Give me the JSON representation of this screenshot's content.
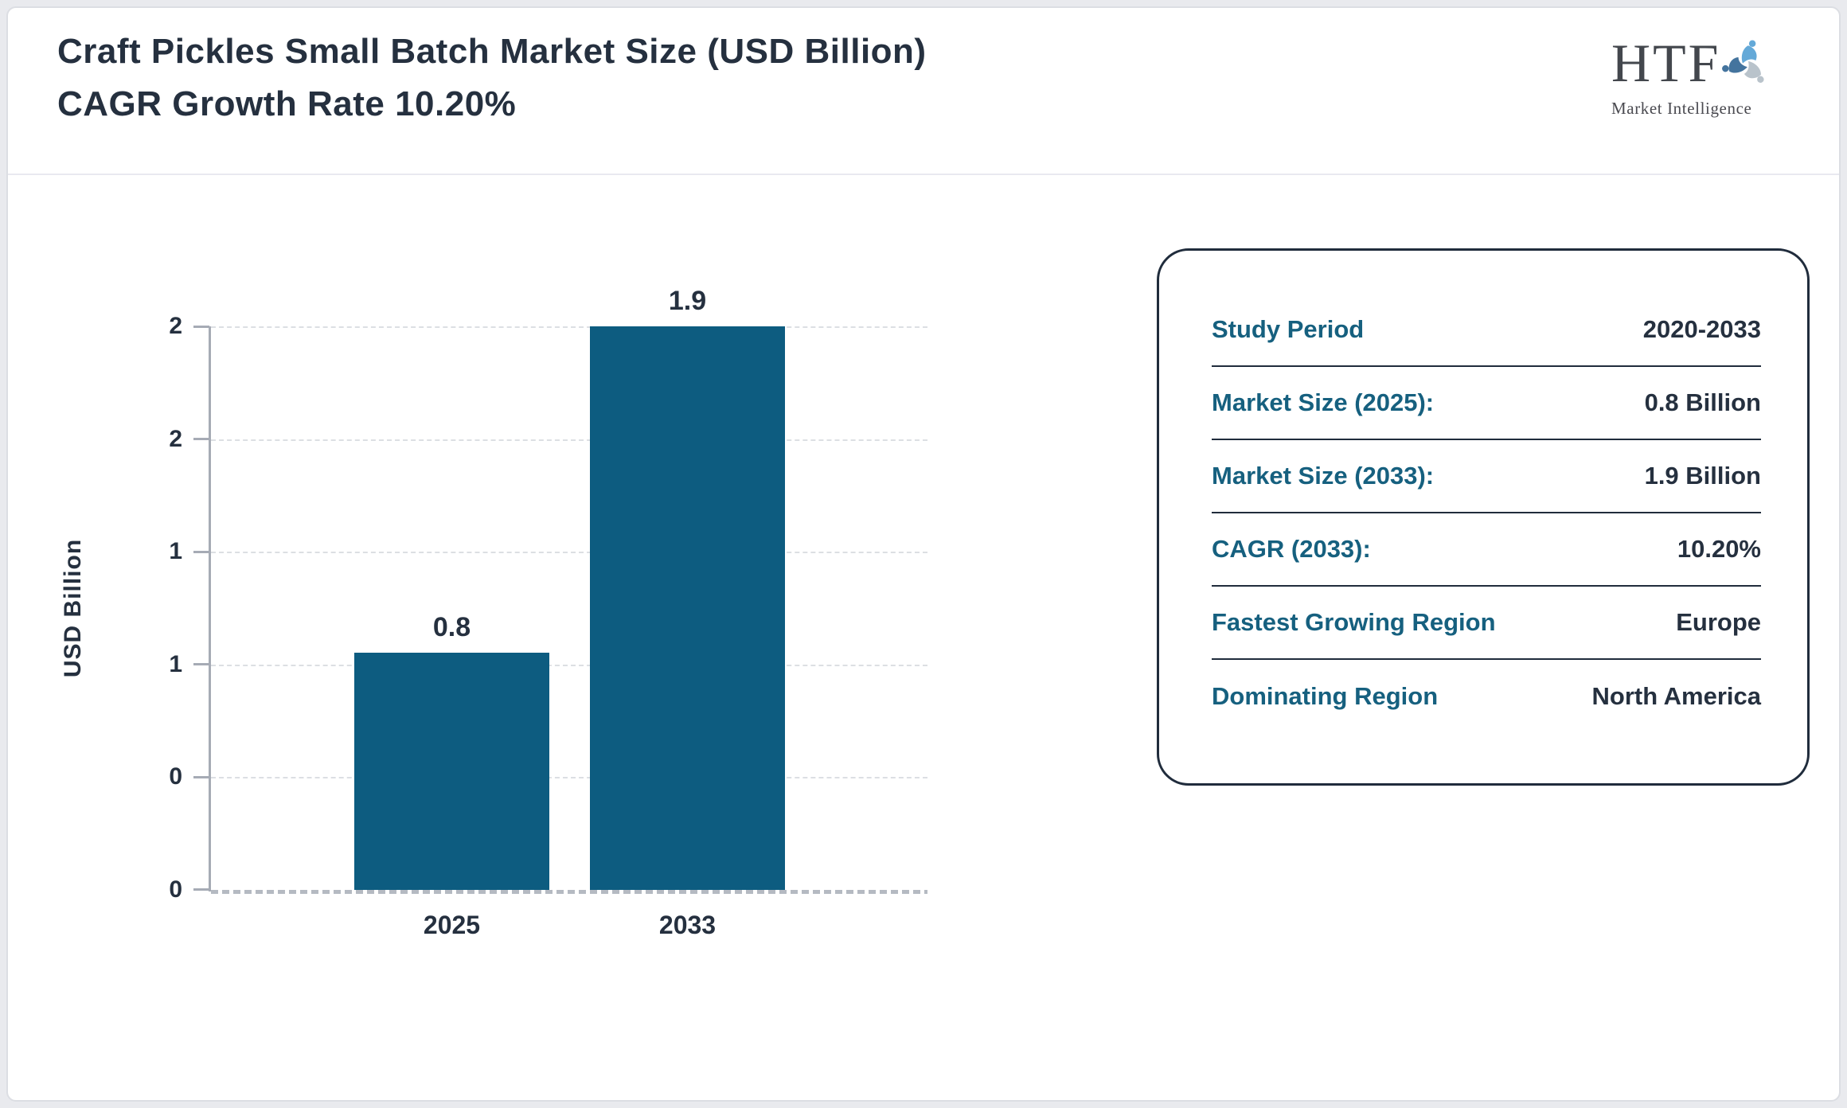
{
  "header": {
    "title": "Craft Pickles Small Batch Market Size (USD Billion) CAGR Growth Rate 10.20%",
    "logo": {
      "abbr": "HTF",
      "tagline": "Market Intelligence"
    }
  },
  "chart_data": {
    "type": "bar",
    "title": "Craft Pickles Small Batch Market Size (USD Billion) CAGR Growth Rate 10.20%",
    "categories": [
      "2025",
      "2033"
    ],
    "values": [
      0.8,
      1.9
    ],
    "bar_value_labels": [
      "0.8",
      "1.9"
    ],
    "xlabel": "",
    "ylabel": "USD Billion",
    "ylim": [
      0,
      1.9
    ],
    "ytick_labels_top_to_bottom": [
      "2",
      "2",
      "1",
      "1",
      "0",
      "0"
    ],
    "grid": "horizontal-dashed",
    "legend_position": "none",
    "bar_color": "#0d5c80"
  },
  "info_panel": {
    "rows": [
      {
        "label": "Study Period",
        "value": "2020-2033"
      },
      {
        "label": "Market Size (2025):",
        "value": "0.8 Billion"
      },
      {
        "label": "Market Size (2033):",
        "value": "1.9 Billion"
      },
      {
        "label": "CAGR (2033):",
        "value": "10.20%"
      },
      {
        "label": "Fastest Growing Region",
        "value": "Europe"
      },
      {
        "label": "Dominating Region",
        "value": "North America"
      }
    ]
  },
  "colors": {
    "bar": "#0d5c80",
    "label_teal": "#16607f",
    "text_navy": "#25303f",
    "axis_gray": "#a6abb5",
    "logo_light_blue": "#64a9d8",
    "logo_gray_blue": "#b9c3cb",
    "logo_steel_blue": "#44749e"
  }
}
